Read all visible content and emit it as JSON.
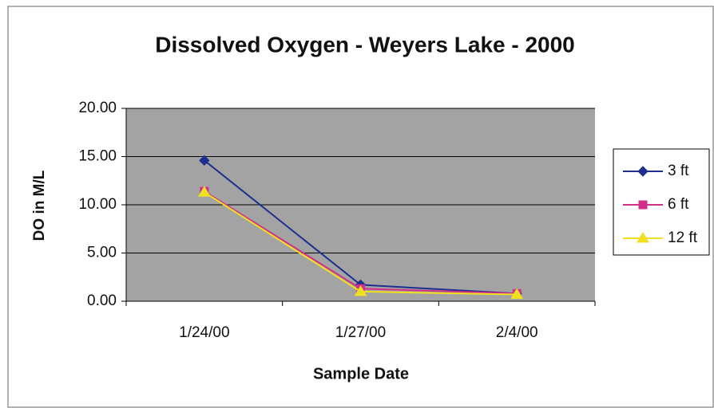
{
  "chart_data": {
    "type": "line",
    "title": "Dissolved Oxygen - Weyers Lake - 2000",
    "x_label": "Sample Date",
    "y_label": "DO in M/L",
    "categories": [
      "1/24/00",
      "1/27/00",
      "2/4/00"
    ],
    "series": [
      {
        "name": "3 ft",
        "color": "#1f2f8f",
        "marker": "diamond",
        "values": [
          14.6,
          1.7,
          0.8
        ]
      },
      {
        "name": "6 ft",
        "color": "#d0308a",
        "marker": "square",
        "values": [
          11.4,
          1.3,
          0.8
        ]
      },
      {
        "name": "12 ft",
        "color": "#f0e020",
        "marker": "triangle",
        "values": [
          11.3,
          1.0,
          0.7
        ]
      }
    ],
    "ylim": [
      0,
      20
    ],
    "yticks": [
      {
        "value": 0,
        "label": "0.00"
      },
      {
        "value": 5,
        "label": "5.00"
      },
      {
        "value": 10,
        "label": "10.00"
      },
      {
        "value": 15,
        "label": "15.00"
      },
      {
        "value": 20,
        "label": "20.00"
      }
    ],
    "grid": true,
    "legend": "right"
  }
}
